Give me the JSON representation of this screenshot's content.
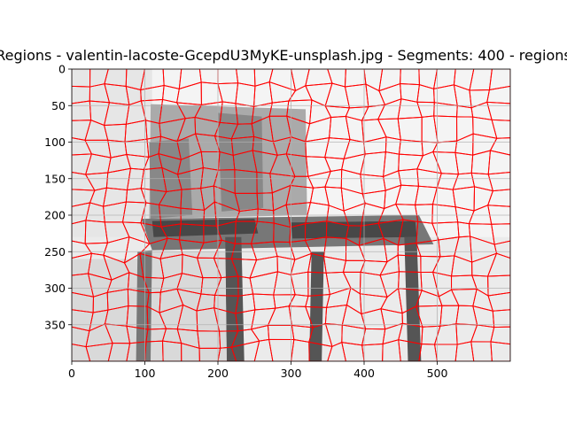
{
  "chart_data": {
    "type": "heatmap",
    "title": "Regions - valentin-lacoste-GcepdU3MyKE-unsplash.jpg - Segments: 400 - regions",
    "xlabel": "",
    "ylabel": "",
    "xlim": [
      0,
      600
    ],
    "ylim": [
      400,
      0
    ],
    "xticks": [
      0,
      100,
      200,
      300,
      400,
      500
    ],
    "yticks": [
      0,
      50,
      100,
      150,
      200,
      250,
      300,
      350
    ],
    "grid": true,
    "image": {
      "width": 600,
      "height": 400,
      "segments": 400,
      "boundary_color": "#ff0000"
    },
    "gray_levels": {
      "background_white": "#f4f4f4",
      "wall_gray": "#e6e6e6",
      "chair_back": "#aaaaaa",
      "chair_back_shadow": "#888888",
      "seat_frame": "#777777",
      "seat_dark": "#474747",
      "legs": "#555555",
      "floor_left": "#d9d9d9",
      "floor_light": "#ebebeb"
    }
  }
}
